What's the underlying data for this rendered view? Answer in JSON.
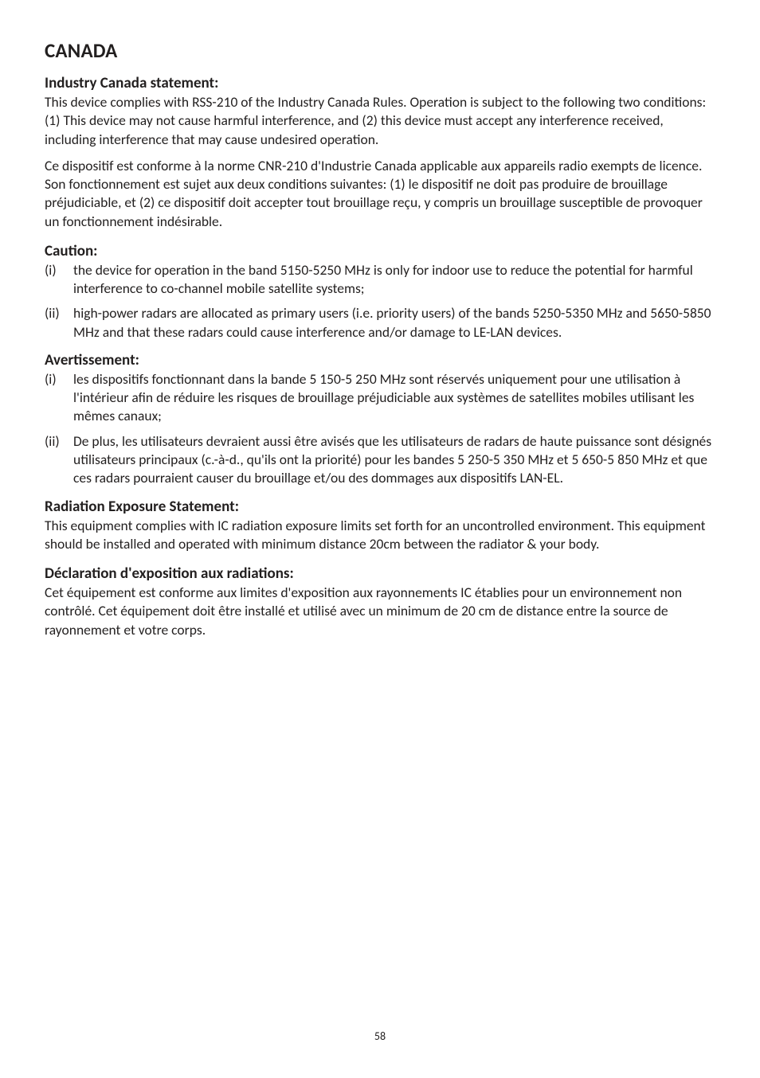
{
  "page": {
    "title": "CANADA",
    "number": "58"
  },
  "sections": [
    {
      "heading": "Industry Canada statement:",
      "paragraphs": [
        "This device complies with RSS-210 of the Industry Canada Rules. Operation is subject to the following two conditions: (1) This device may not cause harmful interference, and (2) this device must accept any interference received, including interference that may cause undesired operation.",
        "Ce dispositif est conforme à la norme CNR-210 d'Industrie Canada applicable aux appareils radio exempts de licence. Son fonctionnement est sujet aux deux conditions suivantes: (1) le dispositif ne doit pas produire de brouillage préjudiciable, et (2) ce dispositif doit accepter tout brouillage reçu, y compris un brouillage susceptible de provoquer un fonctionnement indésirable."
      ]
    },
    {
      "heading": "Caution:",
      "list": [
        {
          "marker": "(i)",
          "text": "the device for operation in the band 5150-5250 MHz is only for indoor use to reduce the potential for harmful interference to co-channel mobile satellite systems;"
        },
        {
          "marker": "(ii)",
          "text": "high-power radars are allocated as primary users (i.e. priority users) of the bands 5250-5350 MHz and 5650-5850 MHz and that these radars could cause interference and/or damage to LE-LAN devices."
        }
      ]
    },
    {
      "heading": "Avertissement:",
      "list": [
        {
          "marker": "(i)",
          "text": "les dispositifs fonctionnant dans la bande 5 150-5 250 MHz sont réservés uniquement pour une utilisation à l'intérieur afin de réduire les risques de brouillage préjudiciable aux systèmes de satellites mobiles utilisant les mêmes canaux;"
        },
        {
          "marker": "(ii)",
          "text": "De plus, les utilisateurs devraient aussi être avisés que les utilisateurs de radars de haute puissance sont désignés utilisateurs principaux (c.-à-d., qu'ils ont la priorité) pour les bandes 5 250-5 350 MHz et 5 650-5 850 MHz et que ces radars pourraient causer du brouillage et/ou des dommages aux dispositifs LAN-EL."
        }
      ]
    },
    {
      "heading": "Radiation Exposure Statement:",
      "paragraphs": [
        "This equipment complies with IC radiation exposure limits set forth for an uncontrolled environment. This equipment should be installed and operated with minimum distance 20cm between the radiator & your body."
      ]
    },
    {
      "heading": "Déclaration d'exposition aux radiations:",
      "paragraphs": [
        "Cet équipement est conforme aux limites d'exposition aux rayonnements IC établies pour un environnement non contrôlé. Cet équipement doit être installé et utilisé avec un minimum de 20 cm de distance entre la source de rayonnement et votre corps."
      ]
    }
  ]
}
